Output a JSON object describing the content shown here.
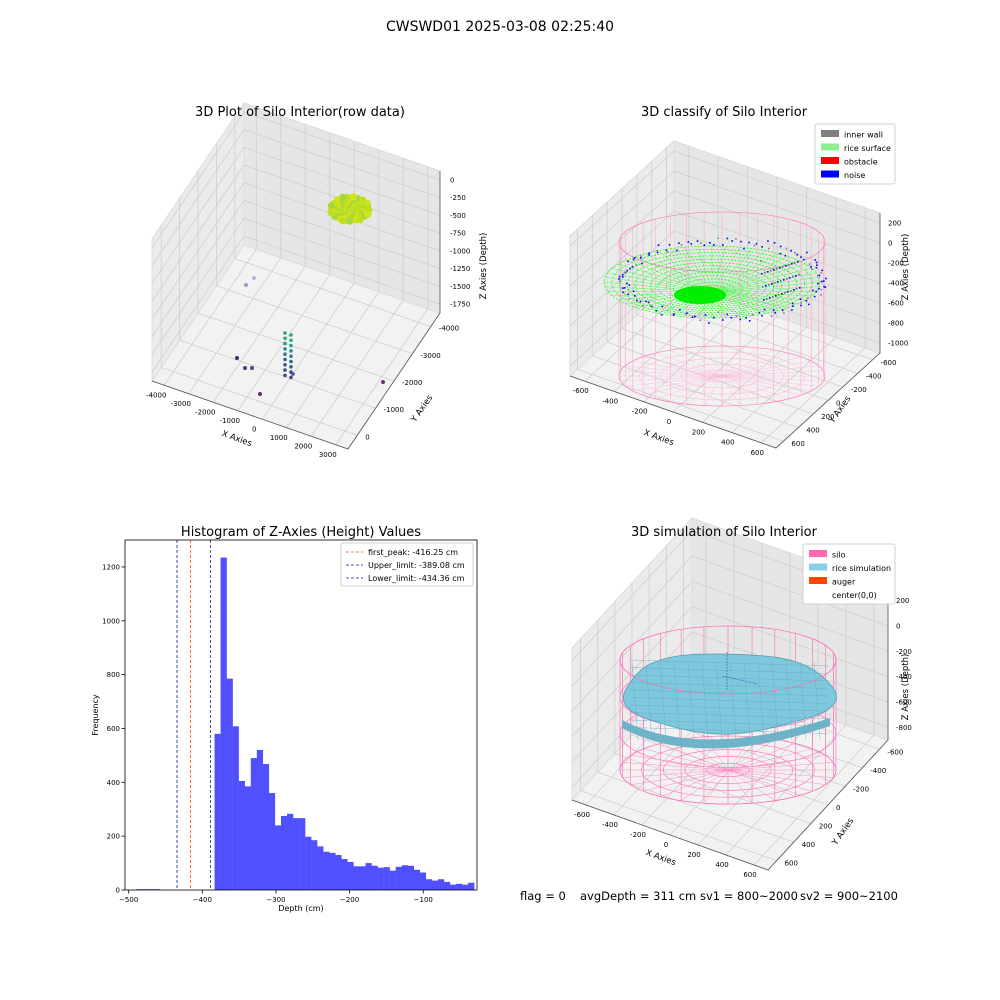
{
  "suptitle": "CWSWD01 2025-03-08 02:25:40",
  "footer": {
    "flag": "flag = 0",
    "avg_depth": "avgDepth = 311 cm",
    "sv1": "sv1 = 800~2000",
    "sv2": "sv2 = 900~2100"
  },
  "chart_data": [
    {
      "type": "scatter",
      "title": "3D Plot of Silo Interior(row data)",
      "xlabel": "X Axies",
      "ylabel": "Y Axies",
      "zlabel": "Z Axies (Depth)",
      "x_ticks": [
        "-4000",
        "-3000",
        "-2000",
        "-1000",
        "0",
        "1000",
        "2000",
        "3000"
      ],
      "y_ticks": [
        "-4000",
        "-3000",
        "-2000",
        "-1000",
        "0"
      ],
      "z_ticks": [
        "0",
        "-250",
        "-500",
        "-750",
        "-1000",
        "-1250",
        "-1500",
        "-1750"
      ],
      "points": [
        {
          "x": 1000,
          "y": -3000,
          "z": -200,
          "color": "#c8e01e"
        },
        {
          "x": -3600,
          "y": -1500,
          "z": -1300,
          "color": "#9b9ac8"
        },
        {
          "x": 200,
          "y": -2000,
          "z": -1500,
          "color": "#2e9a8a"
        },
        {
          "x": 200,
          "y": -1900,
          "z": -1600,
          "color": "#2d8a8b"
        },
        {
          "x": -2200,
          "y": -900,
          "z": -1800,
          "color": "#433e85"
        },
        {
          "x": 2800,
          "y": -900,
          "z": -1800,
          "color": "#5b2a78"
        }
      ]
    },
    {
      "type": "scatter",
      "title": "3D classify of Silo Interior",
      "xlabel": "X Axies",
      "ylabel": "Y Axies",
      "zlabel": "Z Axies (Depth)",
      "x_ticks": [
        "-600",
        "-400",
        "-200",
        "0",
        "200",
        "400",
        "600"
      ],
      "y_ticks": [
        "-600",
        "-400",
        "-200",
        "0",
        "200",
        "400",
        "600"
      ],
      "z_ticks": [
        "200",
        "0",
        "-200",
        "-400",
        "-600",
        "-800",
        "-1000"
      ],
      "legend": [
        {
          "label": "inner wall",
          "color": "#808080"
        },
        {
          "label": "rice surface",
          "color": "#90ee90"
        },
        {
          "label": "obstacle",
          "color": "#ff0000"
        },
        {
          "label": "noise",
          "color": "#0000ff"
        }
      ]
    },
    {
      "type": "bar",
      "title": "Histogram of Z-Axies (Height) Values",
      "xlabel": "Depth (cm)",
      "ylabel": "Frequency",
      "xlim": [
        -505,
        -27
      ],
      "ylim": [
        0,
        1300
      ],
      "bin_start": -490,
      "bin_width": 8.2,
      "counts": [
        3,
        3,
        3,
        3,
        0,
        0,
        0,
        0,
        0,
        0,
        0,
        0,
        0,
        580,
        1235,
        785,
        608,
        405,
        385,
        490,
        520,
        468,
        360,
        240,
        275,
        283,
        267,
        267,
        198,
        185,
        162,
        142,
        138,
        130,
        115,
        104,
        88,
        88,
        100,
        90,
        83,
        85,
        72,
        86,
        92,
        90,
        75,
        65,
        40,
        35,
        40,
        30,
        20,
        23,
        20,
        27
      ],
      "bar_color": "#5050ff",
      "x_ticks": [
        -500,
        -400,
        -300,
        -200,
        -100
      ],
      "y_ticks": [
        0,
        200,
        400,
        600,
        800,
        1000,
        1200
      ],
      "lines": [
        {
          "label": "first_peak: -416.25 cm",
          "value": -416.25,
          "color": "#ff4500"
        },
        {
          "label": "Upper_limit: -389.08 cm",
          "value": -389.08,
          "color": "#1a1a8c"
        },
        {
          "label": "Lower_limit: -434.36 cm",
          "value": -434.36,
          "color": "#1a1a8c"
        }
      ]
    },
    {
      "type": "surface",
      "title": "3D simulation of Silo Interior",
      "xlabel": "X Axies",
      "ylabel": "Y Axies",
      "zlabel": "Z Axies (Depth)",
      "x_ticks": [
        "-600",
        "-400",
        "-200",
        "0",
        "200",
        "400",
        "600"
      ],
      "y_ticks": [
        "-600",
        "-400",
        "-200",
        "0",
        "200",
        "400",
        "600"
      ],
      "z_ticks": [
        "200",
        "0",
        "-200",
        "-400",
        "-600",
        "-800"
      ],
      "legend": [
        {
          "label": "silo",
          "color": "#ff69b4"
        },
        {
          "label": "rice simulation",
          "color": "#87ceeb"
        },
        {
          "label": "auger",
          "color": "#ff4500"
        },
        {
          "label": "center(0,0)",
          "color": "#ffffff"
        }
      ]
    }
  ]
}
